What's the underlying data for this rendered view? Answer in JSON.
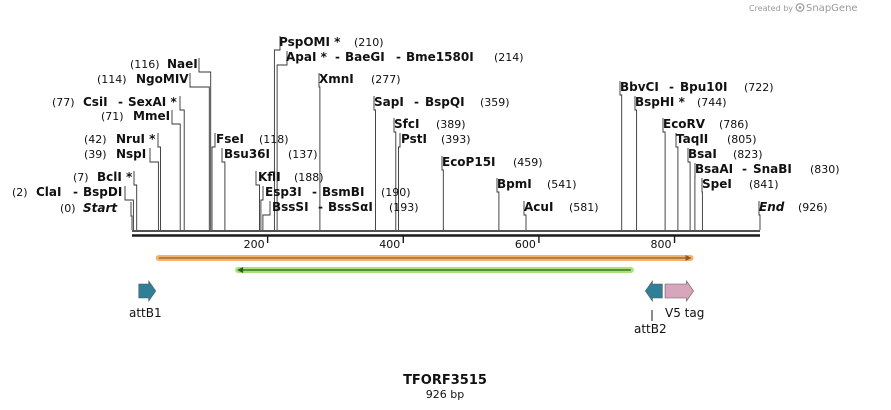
{
  "credit": {
    "prefix": "Created by",
    "brand": "SnapGene"
  },
  "title": "TFORF3515",
  "length": "926 bp",
  "scale": {
    "max": 926,
    "ticks": [
      200,
      400,
      600,
      800
    ]
  },
  "colors": {
    "backbone": "#1a1a1a",
    "orf_outer": "#f3b46a",
    "orf_inner": "#8a5a2b",
    "primer_outer": "#a8e07a",
    "primer_inner": "#2e5e12",
    "att_feature": "#2f7f97",
    "v5_feature": "#d7a6bd"
  },
  "sites": [
    {
      "names": [
        "ClaI",
        "BspDI"
      ],
      "pos": "(2)",
      "bp": 2
    },
    {
      "names": [
        "Start"
      ],
      "pos": "(0)",
      "bp": 0,
      "italic": true
    },
    {
      "names": [
        "BclI *"
      ],
      "pos": "(7)",
      "bp": 7
    },
    {
      "names": [
        "NspI"
      ],
      "pos": "(39)",
      "bp": 39
    },
    {
      "names": [
        "NruI *"
      ],
      "pos": "(42)",
      "bp": 42
    },
    {
      "names": [
        "MmeI"
      ],
      "pos": "(71)",
      "bp": 71
    },
    {
      "names": [
        "CsiI",
        "SexAI *"
      ],
      "pos": "(77)",
      "bp": 77
    },
    {
      "names": [
        "NgoMIV"
      ],
      "pos": "(114)",
      "bp": 114
    },
    {
      "names": [
        "NaeI"
      ],
      "pos": "(116)",
      "bp": 116
    },
    {
      "names": [
        "FseI"
      ],
      "pos": "(118)",
      "bp": 118
    },
    {
      "names": [
        "Bsu36I"
      ],
      "pos": "(137)",
      "bp": 137
    },
    {
      "names": [
        "KflI"
      ],
      "pos": "(188)",
      "bp": 188
    },
    {
      "names": [
        "Esp3I",
        "BsmBI"
      ],
      "pos": "(190)",
      "bp": 190
    },
    {
      "names": [
        "BssSI",
        "BssSαI"
      ],
      "pos": "(193)",
      "bp": 193
    },
    {
      "names": [
        "PspOMI *"
      ],
      "pos": "(210)",
      "bp": 210
    },
    {
      "names": [
        "ApaI *",
        "BaeGI",
        "Bme1580I"
      ],
      "pos": "(214)",
      "bp": 214
    },
    {
      "names": [
        "XmnI"
      ],
      "pos": "(277)",
      "bp": 277
    },
    {
      "names": [
        "SapI",
        "BspQI"
      ],
      "pos": "(359)",
      "bp": 359
    },
    {
      "names": [
        "SfcI"
      ],
      "pos": "(389)",
      "bp": 389
    },
    {
      "names": [
        "PstI"
      ],
      "pos": "(393)",
      "bp": 393
    },
    {
      "names": [
        "EcoP15I"
      ],
      "pos": "(459)",
      "bp": 459
    },
    {
      "names": [
        "BpmI"
      ],
      "pos": "(541)",
      "bp": 541
    },
    {
      "names": [
        "AcuI"
      ],
      "pos": "(581)",
      "bp": 581
    },
    {
      "names": [
        "BbvCI",
        "Bpu10I"
      ],
      "pos": "(722)",
      "bp": 722
    },
    {
      "names": [
        "BspHI *"
      ],
      "pos": "(744)",
      "bp": 744
    },
    {
      "names": [
        "EcoRV"
      ],
      "pos": "(786)",
      "bp": 786
    },
    {
      "names": [
        "TaqII"
      ],
      "pos": "(805)",
      "bp": 805
    },
    {
      "names": [
        "BsaI"
      ],
      "pos": "(823)",
      "bp": 823
    },
    {
      "names": [
        "BsaAI",
        "SnaBI"
      ],
      "pos": "(830)",
      "bp": 830
    },
    {
      "names": [
        "SpeI"
      ],
      "pos": "(841)",
      "bp": 841
    },
    {
      "names": [
        "End"
      ],
      "pos": "(926)",
      "bp": 926,
      "italic": true
    }
  ],
  "features": [
    {
      "name": "ORF",
      "kind": "orf",
      "start": 35,
      "end": 828,
      "strand": 1
    },
    {
      "name": "primer-region",
      "kind": "primer",
      "start": 152,
      "end": 740,
      "strand": -1
    },
    {
      "name": "attB1",
      "kind": "att",
      "start": 10,
      "end": 35,
      "strand": 1
    },
    {
      "name": "attB2",
      "kind": "att",
      "start": 757,
      "end": 782,
      "strand": -1
    },
    {
      "name": "V5 tag",
      "kind": "v5",
      "start": 786,
      "end": 828,
      "strand": 1
    }
  ],
  "feature_labels": {
    "attB1": "attB1",
    "attB2": "attB2",
    "v5": "V5 tag"
  }
}
